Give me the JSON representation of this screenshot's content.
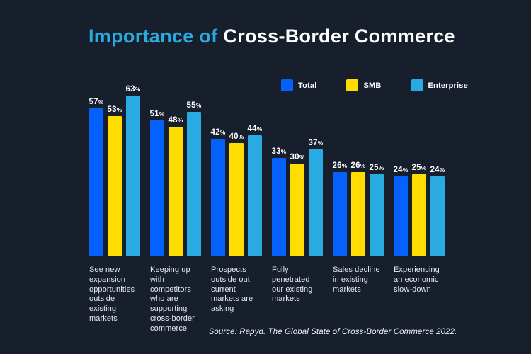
{
  "title": {
    "highlight": "Importance of",
    "rest": "Cross-Border Commerce"
  },
  "source": "Source: Rapyd. The Global State of Cross-Border Commerce 2022.",
  "colors": {
    "background": "#161f2b",
    "title_highlight": "#29abe2",
    "title_rest": "#ffffff",
    "total": "#0561fb",
    "smb": "#ffdd00",
    "enterprise": "#29abe2",
    "label_text": "#e9ebf0",
    "value_text": "#ffffff"
  },
  "chart_data": {
    "type": "bar",
    "title": "Importance of Cross-Border Commerce",
    "legend_position": "top-right",
    "grid": false,
    "value_labels": true,
    "value_suffix": "%",
    "categories": [
      "See new\nexpansion\nopportunities\noutside\nexisting\nmarkets",
      "Keeping up\nwith\ncompetitors\nwho are\nsupporting\ncross-border\ncommerce",
      "Prospects\noutside out\ncurrent\nmarkets are\nasking",
      "Fully\npenetrated\nour existing\nmarkets",
      "Sales decline\nin existing\nmarkets",
      "Experiencing\nan economic\nslow-down"
    ],
    "series": [
      {
        "name": "Total",
        "color": "#0561fb",
        "values": [
          57,
          51,
          42,
          33,
          26,
          24
        ]
      },
      {
        "name": "SMB",
        "color": "#ffdd00",
        "values": [
          53,
          48,
          40,
          30,
          26,
          25
        ]
      },
      {
        "name": "Enterprise",
        "color": "#29abe2",
        "values": [
          63,
          55,
          44,
          37,
          25,
          24
        ]
      }
    ]
  }
}
